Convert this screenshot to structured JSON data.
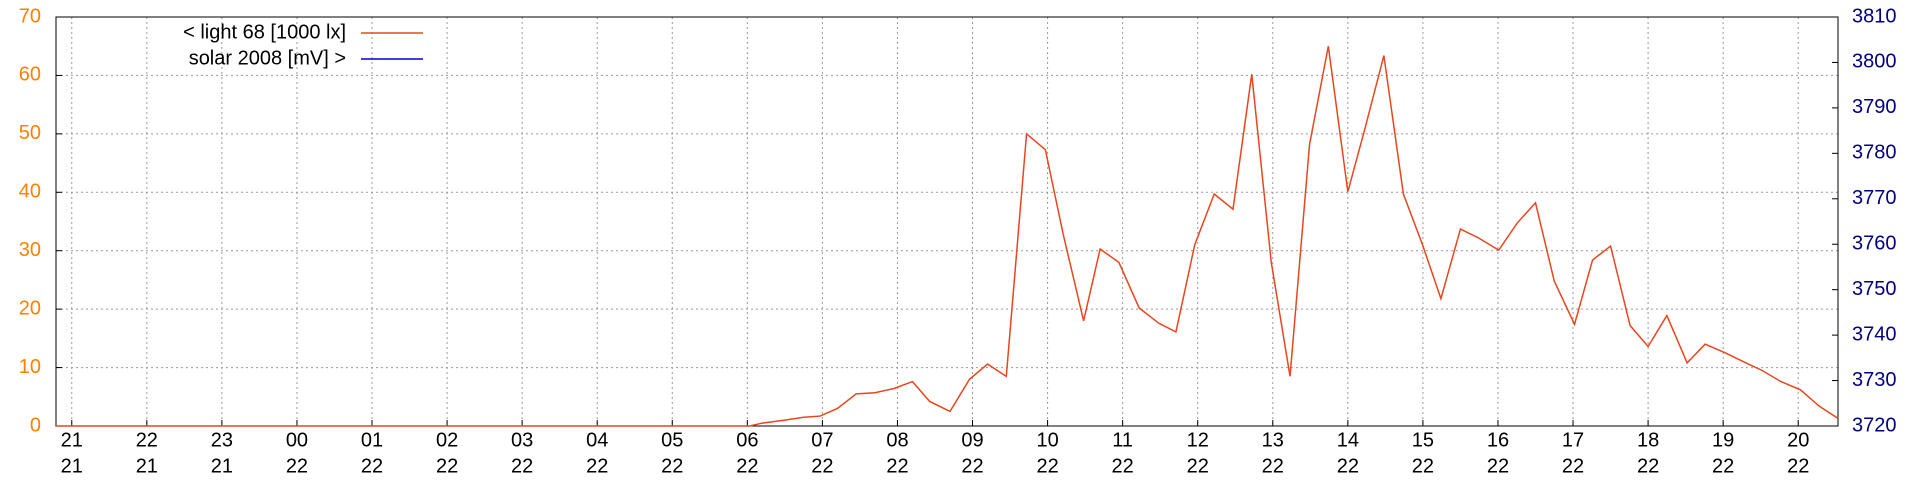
{
  "chart_data": {
    "type": "line",
    "x": [
      -0.21,
      9.03,
      9.2,
      9.5,
      9.75,
      9.97,
      10.2,
      10.45,
      10.7,
      10.95,
      11.2,
      11.43,
      11.7,
      11.96,
      12.2,
      12.45,
      12.72,
      12.97,
      13.21,
      13.48,
      13.7,
      13.95,
      14.22,
      14.48,
      14.71,
      14.96,
      15.22,
      15.47,
      15.72,
      15.98,
      16.23,
      16.49,
      16.74,
      17.0,
      17.23,
      17.48,
      17.74,
      17.99,
      18.24,
      18.5,
      18.74,
      19.01,
      19.26,
      19.5,
      19.75,
      20.02,
      20.26,
      20.5,
      20.76,
      21.0,
      21.25,
      21.52,
      21.76,
      22.03,
      22.27,
      22.52,
      22.77,
      23.03,
      23.28,
      23.53
    ],
    "series": [
      {
        "name": "< light 68 [1000 lx]",
        "color": "#e8461e",
        "values": [
          0,
          0,
          0.5,
          1,
          1.5,
          1.7,
          3,
          5.5,
          5.7,
          6.4,
          7.6,
          4.2,
          2.5,
          8,
          10.6,
          8.5,
          50,
          47.3,
          32.7,
          18,
          30.3,
          28,
          20.2,
          17.6,
          16.1,
          31,
          39.7,
          37.1,
          60.2,
          28,
          8.5,
          48.2,
          65,
          40.1,
          51,
          63.4,
          39.7,
          31.2,
          21.8,
          33.7,
          32.2,
          30.1,
          34.8,
          38.2,
          24.8,
          17.4,
          28.4,
          30.8,
          17.2,
          13.6,
          18.9,
          10.8,
          14,
          12.5,
          11,
          9.5,
          7.6,
          6.2,
          3.4,
          1.3
        ]
      },
      {
        "name": "solar 2008 [mV] >",
        "color": "#0000cc",
        "axis": "y2",
        "values": [
          null,
          null,
          null,
          null,
          null,
          null,
          null,
          null,
          null,
          null,
          null,
          null,
          null,
          null,
          null,
          null,
          null,
          null,
          null,
          null,
          null,
          null,
          null,
          null,
          null,
          null,
          null,
          null,
          null,
          null,
          null,
          null,
          null,
          null,
          null,
          null,
          null,
          null,
          null,
          null,
          null,
          null,
          null,
          null,
          null,
          null,
          null,
          null,
          null,
          null,
          null,
          null,
          null,
          null,
          null,
          null,
          null,
          null,
          null,
          null
        ]
      }
    ],
    "xlim": [
      -0.21,
      23.53
    ],
    "xticks": [
      {
        "value": 0,
        "label": "21",
        "sublabel": "21"
      },
      {
        "value": 1,
        "label": "22",
        "sublabel": "21"
      },
      {
        "value": 2,
        "label": "23",
        "sublabel": "21"
      },
      {
        "value": 3,
        "label": "00",
        "sublabel": "22"
      },
      {
        "value": 4,
        "label": "01",
        "sublabel": "22"
      },
      {
        "value": 5,
        "label": "02",
        "sublabel": "22"
      },
      {
        "value": 6,
        "label": "03",
        "sublabel": "22"
      },
      {
        "value": 7,
        "label": "04",
        "sublabel": "22"
      },
      {
        "value": 8,
        "label": "05",
        "sublabel": "22"
      },
      {
        "value": 9,
        "label": "06",
        "sublabel": "22"
      },
      {
        "value": 10,
        "label": "07",
        "sublabel": "22"
      },
      {
        "value": 11,
        "label": "08",
        "sublabel": "22"
      },
      {
        "value": 12,
        "label": "09",
        "sublabel": "22"
      },
      {
        "value": 13,
        "label": "10",
        "sublabel": "22"
      },
      {
        "value": 14,
        "label": "11",
        "sublabel": "22"
      },
      {
        "value": 15,
        "label": "12",
        "sublabel": "22"
      },
      {
        "value": 16,
        "label": "13",
        "sublabel": "22"
      },
      {
        "value": 17,
        "label": "14",
        "sublabel": "22"
      },
      {
        "value": 18,
        "label": "15",
        "sublabel": "22"
      },
      {
        "value": 19,
        "label": "16",
        "sublabel": "22"
      },
      {
        "value": 20,
        "label": "17",
        "sublabel": "22"
      },
      {
        "value": 21,
        "label": "18",
        "sublabel": "22"
      },
      {
        "value": 22,
        "label": "19",
        "sublabel": "22"
      },
      {
        "value": 23,
        "label": "20",
        "sublabel": "22"
      }
    ],
    "ylim": [
      0,
      70
    ],
    "yticks": [
      0,
      10,
      20,
      30,
      40,
      50,
      60,
      70
    ],
    "ytick_color": "#ff8000",
    "y2lim": [
      3720,
      3810
    ],
    "y2ticks": [
      3720,
      3730,
      3740,
      3750,
      3760,
      3770,
      3780,
      3790,
      3800,
      3810
    ],
    "y2tick_color": "#000080",
    "grid": true,
    "legend": "upper left"
  }
}
